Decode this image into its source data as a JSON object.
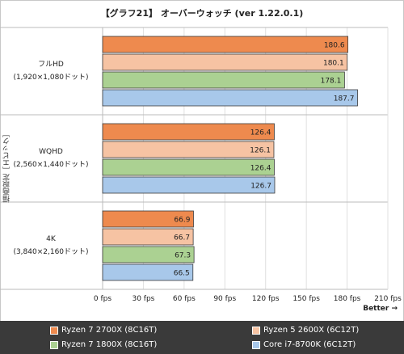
{
  "chart_data": {
    "type": "bar",
    "orientation": "horizontal",
    "title": "【グラフ21】 オーバーウォッチ (ver 1.22.0.1)",
    "ylabel": "描画設定［エピック］",
    "xlabel": "Better →",
    "xlim": [
      0,
      210
    ],
    "x_ticks": [
      "0 fps",
      "30 fps",
      "60 fps",
      "90 fps",
      "120 fps",
      "150 fps",
      "180 fps",
      "210 fps"
    ],
    "x_tick_values": [
      0,
      30,
      60,
      90,
      120,
      150,
      180,
      210
    ],
    "categories": [
      {
        "line1": "フルHD",
        "line2": "(1,920×1,080ドット)"
      },
      {
        "line1": "WQHD",
        "line2": "(2,560×1,440ドット)"
      },
      {
        "line1": "4K",
        "line2": "(3,840×2,160ドット)"
      }
    ],
    "series": [
      {
        "name": "Ryzen 7 2700X (8C16T)",
        "color": "#ee8a4e",
        "values": [
          180.6,
          126.4,
          66.9
        ]
      },
      {
        "name": "Ryzen 5 2600X (6C12T)",
        "color": "#f6c3a3",
        "values": [
          180.1,
          126.1,
          66.7
        ]
      },
      {
        "name": "Ryzen 7 1800X (8C16T)",
        "color": "#abd192",
        "values": [
          178.1,
          126.4,
          67.3
        ]
      },
      {
        "name": "Core i7-8700K (6C12T)",
        "color": "#a8c8ea",
        "values": [
          187.7,
          126.7,
          66.5
        ]
      }
    ],
    "legend_position": "bottom",
    "grid": true,
    "value_labels": [
      "180.6",
      "180.1",
      "178.1",
      "187.7",
      "126.4",
      "126.1",
      "126.4",
      "126.7",
      "66.9",
      "66.7",
      "67.3",
      "66.5"
    ]
  }
}
